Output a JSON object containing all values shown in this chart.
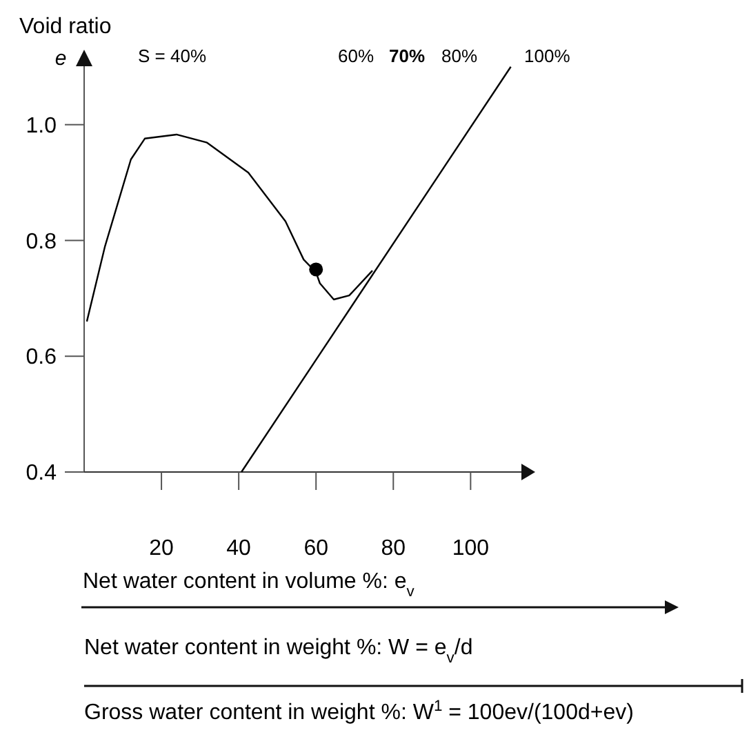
{
  "chart_data": {
    "type": "line",
    "title": "Void ratio",
    "ylabel": "e",
    "xlabel": "Net water content in volume %: e$_{v}$",
    "annotations": [
      "S = 40%",
      "60%",
      "70%",
      "80%",
      "100%",
      "Net water content in weight %: W = e$_{v}$/d",
      "Gross water content in weight %: W$^{1}$ = 100ev/(100d+ev)"
    ],
    "xlim": [
      0,
      116
    ],
    "ylim": [
      0.4,
      1.12
    ],
    "xticks": [
      20,
      40,
      60,
      80,
      100
    ],
    "yticks": [
      {
        "value": 0.4,
        "label": "0.4"
      },
      {
        "value": 0.6,
        "label": "0.6"
      },
      {
        "value": 0.8,
        "label": "0.8"
      },
      {
        "value": 1.0,
        "label": "1.0"
      }
    ],
    "series": [
      {
        "color": "#000000",
        "x": [
          0.7,
          5.4,
          12.1,
          15.7,
          23.9,
          31.8,
          42.5,
          52.1,
          56.8,
          60,
          61,
          64.6,
          68.6,
          74.6
        ],
        "values": [
          0.66,
          0.79,
          0.94,
          0.976,
          0.983,
          0.969,
          0.917,
          0.833,
          0.767,
          0.745,
          0.726,
          0.698,
          0.705,
          0.748
        ]
      },
      {
        "color": "#000000",
        "x": [
          40.7,
          110.4
        ],
        "values": [
          0.4,
          1.1
        ]
      },
      {
        "type": "scatter",
        "marker": "circle",
        "color": "#000000",
        "x": [
          60
        ],
        "values": [
          0.75
        ]
      }
    ]
  }
}
